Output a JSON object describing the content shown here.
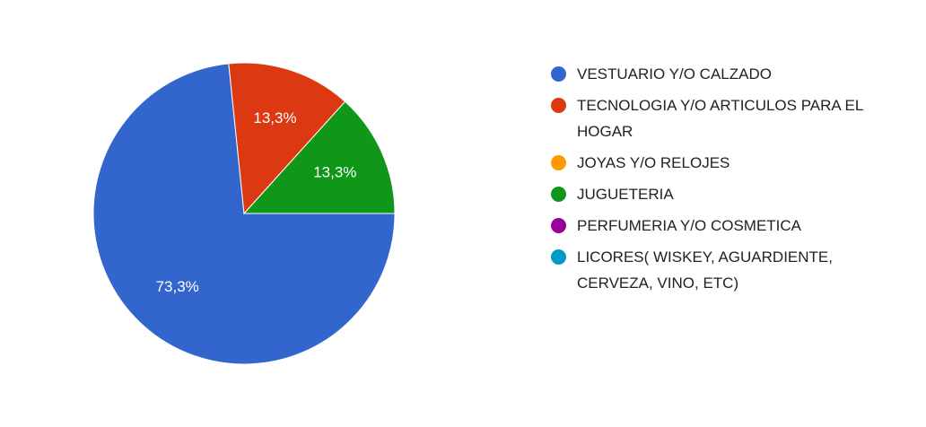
{
  "chart_data": {
    "type": "pie",
    "categories": [
      "VESTUARIO Y/O CALZADO",
      "TECNOLOGIA Y/O ARTICULOS PARA EL HOGAR",
      "JOYAS Y/O RELOJES",
      "JUGUETERIA",
      "PERFUMERIA Y/O COSMETICA",
      "LICORES( WISKEY, AGUARDIENTE, CERVEZA, VINO, ETC)"
    ],
    "values": [
      73.3,
      13.3,
      0,
      13.3,
      0,
      0
    ],
    "value_labels": [
      "73,3%",
      "13,3%",
      null,
      "13,3%",
      null,
      null
    ],
    "colors": [
      "#3366cc",
      "#dc3912",
      "#ff9900",
      "#109618",
      "#990099",
      "#0099c6"
    ]
  }
}
